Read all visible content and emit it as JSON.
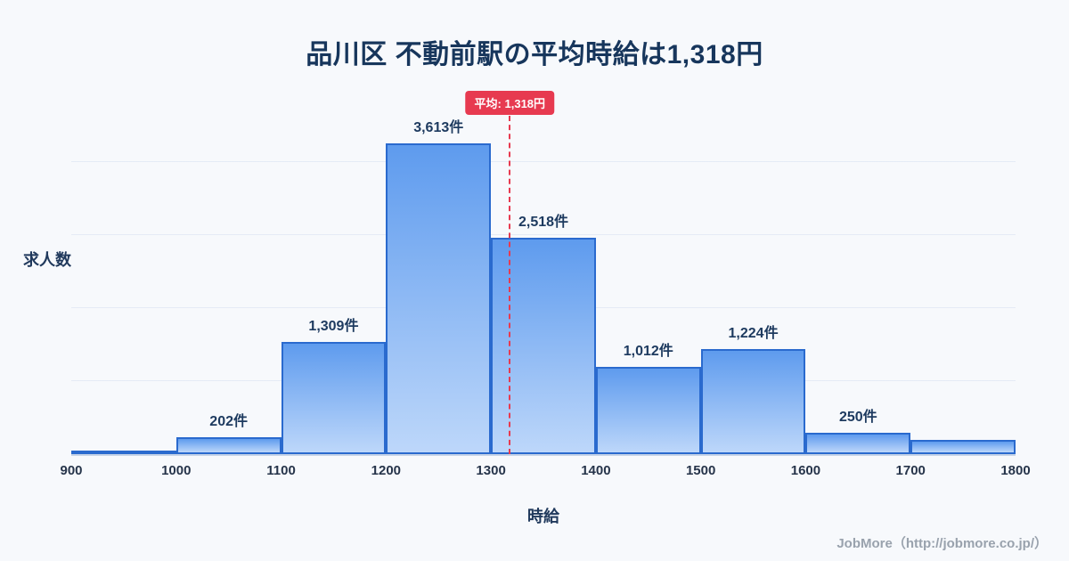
{
  "chart_data": {
    "type": "bar",
    "subtype": "histogram",
    "title": "品川区 不動前駅の平均時給は1,318円",
    "xlabel": "時給",
    "ylabel": "求人数",
    "bin_edges": [
      900,
      1000,
      1100,
      1200,
      1300,
      1400,
      1500,
      1600,
      1700,
      1800
    ],
    "x_ticks": [
      "900",
      "1000",
      "1100",
      "1200",
      "1300",
      "1400",
      "1500",
      "1600",
      "1700",
      "1800"
    ],
    "values": [
      15,
      202,
      1309,
      3613,
      2518,
      1012,
      1224,
      250,
      170
    ],
    "bar_labels": [
      "",
      "202件",
      "1,309件",
      "3,613件",
      "2,518件",
      "1,012件",
      "1,224件",
      "250件",
      ""
    ],
    "ylim": [
      0,
      4250
    ],
    "grid": "faint-horizontal",
    "legend": "none",
    "average": {
      "value": 1318,
      "label": "平均: 1,318円"
    },
    "colors": {
      "bar_gradient_top": "#5e9bee",
      "bar_gradient_bottom": "#bdd7fa",
      "bar_border": "#2a6ace",
      "average_line": "#e73a50",
      "title_text": "#17365c",
      "background": "#f7f9fc"
    }
  },
  "footer": {
    "credit": "JobMore（http://jobmore.co.jp/）"
  }
}
